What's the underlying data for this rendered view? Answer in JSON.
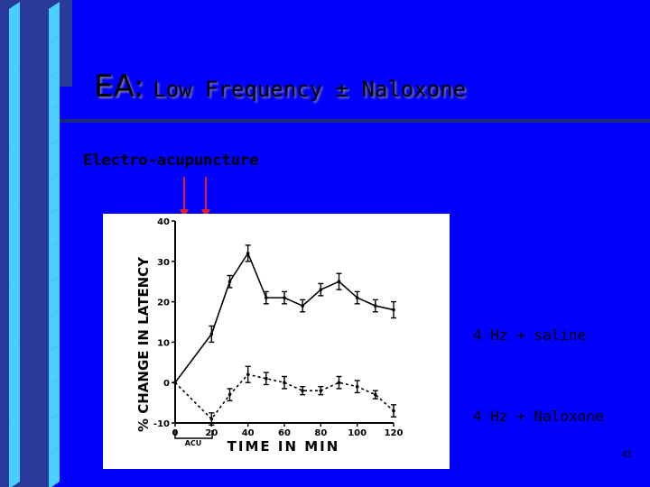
{
  "slide": {
    "title_prefix": "EA:",
    "title_rest": "Low Frequency ± Naloxone",
    "subtitle": "Electro-acupuncture",
    "legend_saline": "4 Hz + saline",
    "legend_naloxone": "4 Hz + Naloxone",
    "page_number": "41"
  },
  "colors": {
    "background": "#0000ff",
    "slab": "#2a3a9a",
    "stripe": "#4ad0ff",
    "arrow": "#e02020"
  },
  "chart_data": {
    "type": "line",
    "ylabel": "% CHANGE IN LATENCY",
    "xlabel": "TIME IN MIN",
    "annotation": "ACU",
    "x_ticks": [
      "0",
      "20",
      "40",
      "60",
      "80",
      "100",
      "120"
    ],
    "y_ticks": [
      "40",
      "30",
      "20",
      "10",
      "0",
      "-10"
    ],
    "xlim": [
      0,
      120
    ],
    "ylim": [
      -10,
      40
    ],
    "series": [
      {
        "style": "solid",
        "x": [
          0,
          20,
          30,
          40,
          50,
          60,
          70,
          80,
          90,
          100,
          110,
          120
        ],
        "y": [
          0,
          12,
          25,
          32,
          21,
          21,
          19,
          23,
          25,
          21,
          19,
          18
        ],
        "err": [
          0,
          2,
          1.5,
          2,
          1.5,
          1.5,
          1.5,
          1.5,
          2,
          1.5,
          1.5,
          2
        ]
      },
      {
        "style": "dashed",
        "x": [
          0,
          20,
          30,
          40,
          50,
          60,
          70,
          80,
          90,
          100,
          110,
          120
        ],
        "y": [
          0,
          -9,
          -3,
          2,
          1,
          0,
          -2,
          -2,
          0,
          -1,
          -3,
          -7
        ],
        "err": [
          0,
          1.5,
          1.5,
          2,
          1.5,
          1.5,
          1,
          1,
          1.5,
          1.5,
          1,
          1.5
        ]
      }
    ]
  }
}
